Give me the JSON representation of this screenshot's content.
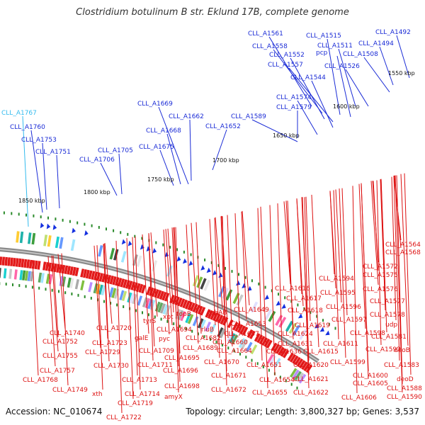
{
  "title": "Clostridium botulinum B str. Eklund 17B, complete genome",
  "accession_text": "Accession: NC_010674",
  "summary_text": "Topology: circular; Length: 3,800,327 bp; Genes: 3,537",
  "colors": {
    "top_label": "#1a2bd6",
    "bottom_label": "#dd1111",
    "highlight_label": "#33bbee",
    "tick": "#2a8a2a",
    "backbone": "#8a8a8a"
  },
  "kbp_ticks": [
    "1550 kbp",
    "1600 kbp",
    "1650 kbp",
    "1700 kbp",
    "1750 kbp",
    "1800 kbp",
    "1850 kbp"
  ],
  "top_labels": [
    "CLL_A1561",
    "CLL_A1515",
    "CLL_A1492",
    "CLL_A1558",
    "CLL_A1511",
    "CLL_A1494",
    "CLL_A1552",
    "pcp",
    "CLL_A1508",
    "CLL_A1557",
    "CLL_A1526",
    "CLL_A1544",
    "CLL_A1574",
    "CLL_A1669",
    "CLL_A1579",
    "CLL_A1767",
    "CLL_A1662",
    "CLL_A1589",
    "CLL_A1760",
    "CLL_A1668",
    "CLL_A1652",
    "CLL_A1753",
    "CLL_A1675",
    "CLL_A1705",
    "CLL_A1751",
    "CLL_A1706"
  ],
  "highlight_labels": [
    "CLL_A1767"
  ],
  "bottom_labels": [
    "CLL_A1564",
    "CLL_A1568",
    "CLL_A1572",
    "CLL_A1575",
    "CLL_A1594",
    "CLL_A1576",
    "CLL_A1616",
    "CLL_A1595",
    "CLL_A1617",
    "CLL_A1577",
    "CLL_A1649",
    "CLL_A1618",
    "CLL_A1596",
    "CLL_A1578",
    "topB",
    "gshAB",
    "tyrS",
    "xpt",
    "CLL_A1597",
    "udp",
    "CLL_A1720",
    "CLL_A1694",
    "rluB",
    "CLL_A1653",
    "CLL_A1619",
    "CLL_A1740",
    "galE",
    "pyc",
    "CLL_A1682",
    "CLL_A1657",
    "CLL_A1624",
    "CLL_A1598",
    "CLL_A1581",
    "CLL_A1752",
    "CLL_A1723",
    "CLL_A1689",
    "CLL_A1660",
    "CLL_A1631",
    "CLL_A1611",
    "CLL_A1593",
    "deoB",
    "CLL_A1729",
    "CLL_A1709",
    "CLL_A1664",
    "CLL_A1636",
    "CLL_A1615",
    "CLL_A1755",
    "CLL_A1695",
    "CLL_A1670",
    "CLL_A1651",
    "CLL_A1620",
    "CLL_A1599",
    "CLL_A1583",
    "CLL_A1730",
    "CLL_A1711",
    "CLL_A1757",
    "CLL_A1696",
    "CLL_A1671",
    "CLL_A1654",
    "CLL_A1621",
    "CLL_A1600",
    "deoD",
    "CLL_A1768",
    "CLL_A1713",
    "CLL_A1698",
    "CLL_A1605",
    "CLL_A1749",
    "xth",
    "CLL_A1714",
    "CLL_A1672",
    "CLL_A1655",
    "CLL_A1622",
    "CLL_A1588",
    "amyX",
    "CLL_A1606",
    "CLL_A1590",
    "CLL_A1719",
    "CLL_A1722"
  ]
}
